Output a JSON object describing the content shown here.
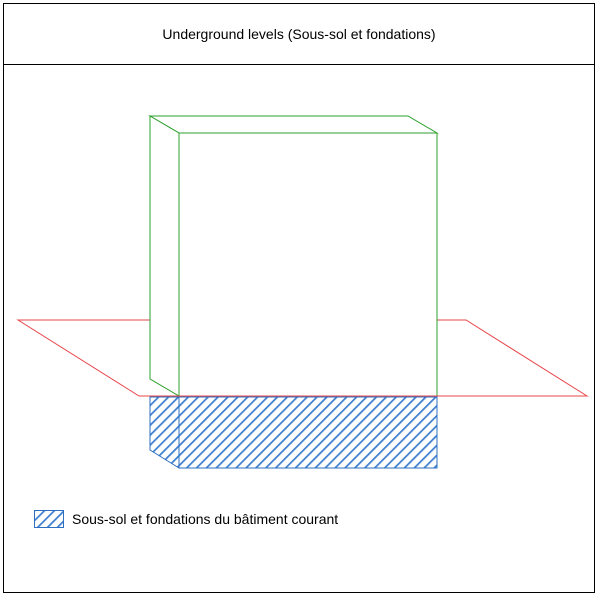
{
  "title": "Underground levels (Sous-sol et fondations)",
  "legend": {
    "label": "Sous-sol et fondations du bâtiment courant",
    "swatch": "hatched-blue"
  },
  "colors": {
    "building_outline": "#2ca02c",
    "ground_plane": "#e8474b",
    "basement_fill": "#6a9ed8",
    "basement_stroke": "#2e6fc2"
  }
}
